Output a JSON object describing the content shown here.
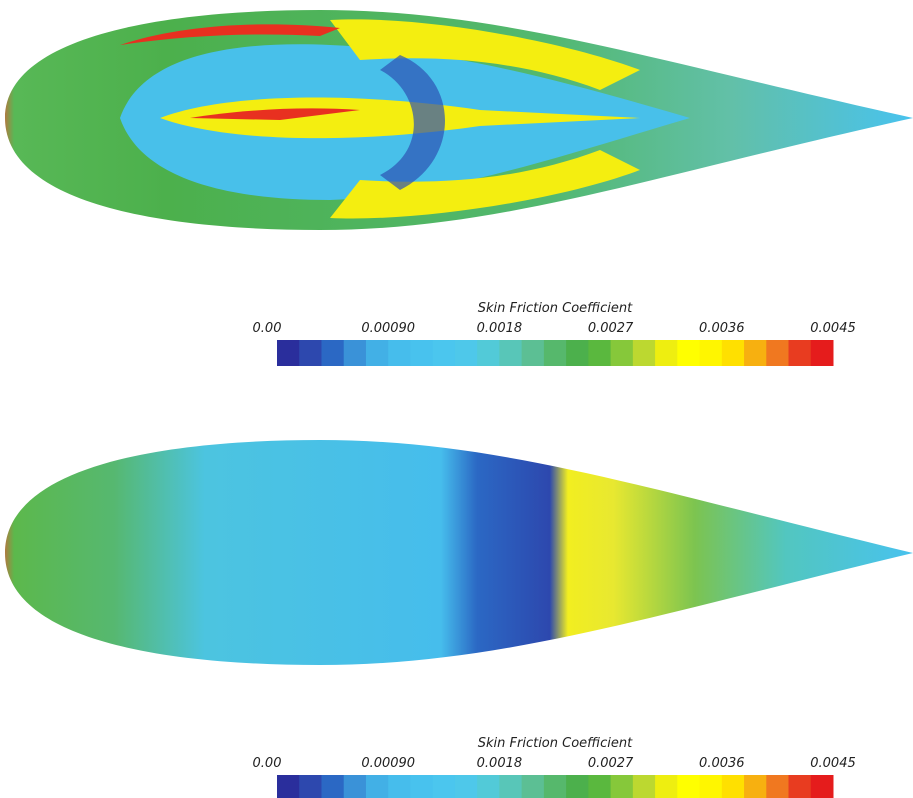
{
  "panels": [
    {
      "colorbar": {
        "title": "Skin Friction Coefficient",
        "lim": [
          0,
          0.0045
        ],
        "ticks": [
          {
            "value": 0,
            "label": "0.00"
          },
          {
            "value": 0.0009,
            "label": "0.00090"
          },
          0.0018,
          0.0027,
          0.0036,
          0.0045
        ],
        "colors": [
          "#2a2e9c",
          "#2d48ae",
          "#2b68c4",
          "#3a92d8",
          "#42b0e6",
          "#46bdec",
          "#48c2ee",
          "#4bc6ee",
          "#4ec8ea",
          "#52cad8",
          "#58c6b8",
          "#5cbf94",
          "#56b86c",
          "#4cb04c",
          "#5ab83e",
          "#86c83a",
          "#bcd830",
          "#eeee10",
          "#ffff00",
          "#fff600",
          "#ffe000",
          "#f7b010",
          "#f07820",
          "#e83c20",
          "#e51c1c"
        ]
      }
    },
    {
      "colorbar": {
        "title": "Skin Friction Coefficient",
        "lim": [
          0,
          0.0045
        ],
        "ticks": [
          {
            "value": 0,
            "label": "0.00"
          },
          {
            "value": 0.0009,
            "label": "0.00090"
          },
          0.0018,
          0.0027,
          0.0036,
          0.0045
        ],
        "colors": [
          "#2a2e9c",
          "#2d48ae",
          "#2b68c4",
          "#3a92d8",
          "#42b0e6",
          "#46bdec",
          "#48c2ee",
          "#4bc6ee",
          "#4ec8ea",
          "#52cad8",
          "#58c6b8",
          "#5cbf94",
          "#56b86c",
          "#4cb04c",
          "#5ab83e",
          "#86c83a",
          "#bcd830",
          "#eeee10",
          "#ffff00",
          "#fff600",
          "#ffe000",
          "#f7b010",
          "#f07820",
          "#e83c20",
          "#e51c1c"
        ]
      }
    }
  ]
}
